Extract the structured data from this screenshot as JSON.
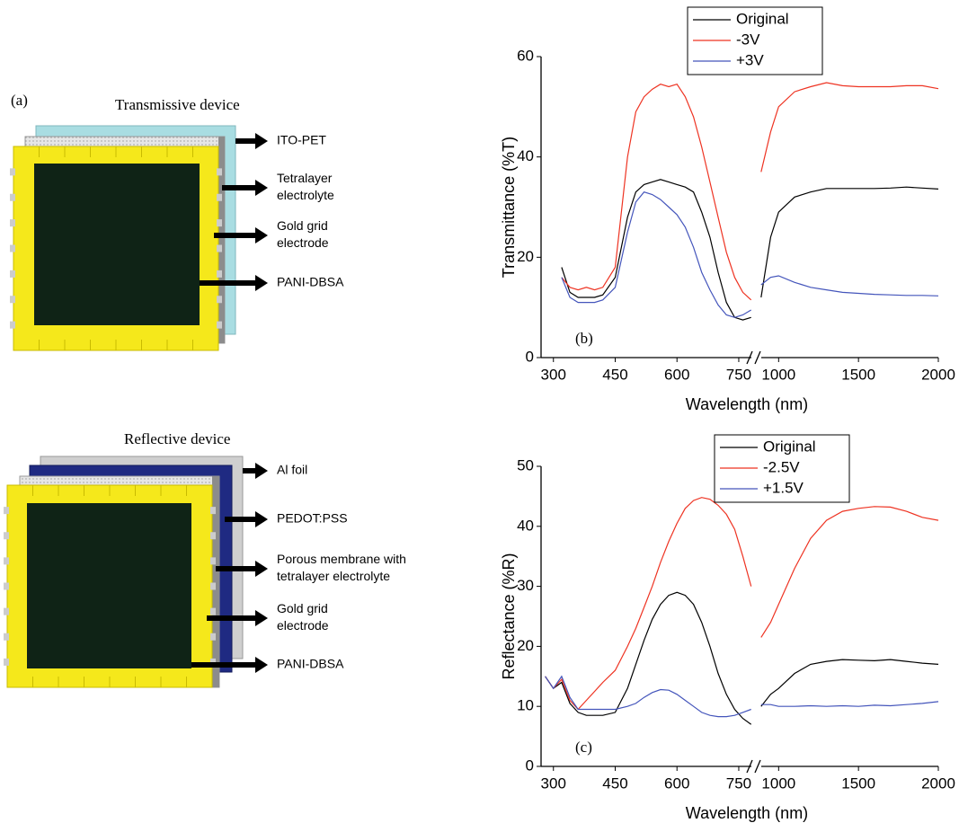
{
  "diagrams": [
    {
      "panel": "(a)",
      "title": "Transmissive device",
      "layers": [
        [
          "ITO-PET"
        ],
        [
          "Tetralayer",
          "electrolyte"
        ],
        [
          "Gold grid",
          "electrode"
        ],
        [
          "PANI-DBSA"
        ]
      ]
    },
    {
      "title": "Reflective device",
      "layers": [
        [
          "Al foil"
        ],
        [
          "PEDOT:PSS"
        ],
        [
          "Porous membrane with",
          "tetralayer electrolyte"
        ],
        [
          "Gold grid",
          "electrode"
        ],
        [
          "PANI-DBSA"
        ]
      ]
    }
  ],
  "chart_data": [
    {
      "type": "line",
      "panel": "(b)",
      "x_label": "Wavelength (nm)",
      "y_label": "Transmittance (%T)",
      "xlim": [
        270,
        2000
      ],
      "x_break": [
        785,
        880
      ],
      "xticks": [
        300,
        450,
        600,
        750,
        1000,
        1500,
        2000
      ],
      "ylim": [
        0,
        60
      ],
      "yticks": [
        0,
        20,
        40,
        60
      ],
      "legend": "upper right",
      "x": [
        320,
        340,
        360,
        380,
        400,
        420,
        450,
        480,
        500,
        520,
        540,
        560,
        580,
        600,
        620,
        640,
        660,
        680,
        700,
        720,
        740,
        760,
        780,
        890,
        950,
        1000,
        1100,
        1200,
        1300,
        1400,
        1500,
        1600,
        1700,
        1800,
        1900,
        2000
      ],
      "series": [
        {
          "name": "Original",
          "color": "#000000",
          "values": [
            18,
            13,
            12,
            12,
            12,
            12.5,
            16,
            28,
            33,
            34.5,
            35,
            35.5,
            35,
            34.5,
            34,
            33,
            29,
            24,
            17,
            11,
            8,
            7.5,
            8,
            12,
            24,
            29,
            32,
            33,
            33.7,
            33.7,
            33.7,
            33.7,
            33.8,
            34,
            33.8,
            33.6
          ]
        },
        {
          "name": "-3V",
          "color": "#ee3322",
          "values": [
            16,
            14,
            13.5,
            14,
            13.5,
            14,
            18,
            40,
            49,
            52,
            53.5,
            54.5,
            54,
            54.5,
            52,
            48,
            42,
            35,
            28,
            21,
            16,
            13,
            11.5,
            37,
            45,
            50,
            53,
            54,
            54.8,
            54.2,
            54,
            54,
            54,
            54.2,
            54.2,
            53.6
          ]
        },
        {
          "name": "+3V",
          "color": "#4455bb",
          "values": [
            16,
            12,
            11,
            11,
            11,
            11.5,
            14,
            25,
            31,
            33,
            32.5,
            31.5,
            30,
            28.5,
            26,
            22,
            17,
            13.5,
            10.5,
            8.5,
            8,
            8.5,
            9.5,
            14.5,
            16,
            16.3,
            15,
            14,
            13.5,
            13,
            12.8,
            12.6,
            12.5,
            12.4,
            12.4,
            12.3
          ]
        }
      ]
    },
    {
      "type": "line",
      "panel": "(c)",
      "x_label": "Wavelength (nm)",
      "y_label": "Reflectance (%R)",
      "xlim": [
        270,
        2000
      ],
      "x_break": [
        785,
        880
      ],
      "xticks": [
        300,
        450,
        600,
        750,
        1000,
        1500,
        2000
      ],
      "ylim": [
        0,
        50
      ],
      "yticks": [
        0,
        10,
        20,
        30,
        40,
        50
      ],
      "legend": "upper right",
      "x": [
        280,
        300,
        320,
        340,
        360,
        380,
        400,
        420,
        450,
        480,
        500,
        520,
        540,
        560,
        580,
        600,
        620,
        640,
        660,
        680,
        700,
        720,
        740,
        760,
        780,
        890,
        950,
        1000,
        1100,
        1200,
        1300,
        1400,
        1500,
        1600,
        1700,
        1800,
        1900,
        2000
      ],
      "series": [
        {
          "name": "Original",
          "color": "#000000",
          "values": [
            15,
            13,
            14,
            10.5,
            9,
            8.5,
            8.5,
            8.5,
            9,
            13,
            17,
            21,
            24.5,
            27,
            28.5,
            29,
            28.5,
            27,
            24,
            20,
            15.5,
            12,
            9.5,
            8,
            7,
            10,
            12,
            13,
            15.5,
            17,
            17.5,
            17.8,
            17.7,
            17.6,
            17.8,
            17.5,
            17.2,
            17
          ]
        },
        {
          "name": "-2.5V",
          "color": "#ee3322",
          "values": [
            15,
            13,
            14.5,
            11,
            9.5,
            11,
            12.5,
            14,
            16,
            20,
            23,
            26.5,
            30,
            34,
            37.5,
            40.5,
            43,
            44.3,
            44.8,
            44.5,
            43.5,
            42,
            39.5,
            35,
            30,
            21.5,
            24,
            27,
            33,
            38,
            41,
            42.5,
            43,
            43.3,
            43.2,
            42.5,
            41.5,
            41
          ]
        },
        {
          "name": "+1.5V",
          "color": "#4455bb",
          "values": [
            15,
            13,
            15,
            11.5,
            9.5,
            9.5,
            9.5,
            9.5,
            9.5,
            10,
            10.5,
            11.5,
            12.3,
            12.8,
            12.7,
            12,
            11,
            10,
            9,
            8.5,
            8.3,
            8.3,
            8.5,
            9,
            9.5,
            10.3,
            10.3,
            10,
            10,
            10.1,
            10,
            10.1,
            10,
            10.2,
            10.1,
            10.3,
            10.5,
            10.8
          ]
        }
      ]
    }
  ]
}
